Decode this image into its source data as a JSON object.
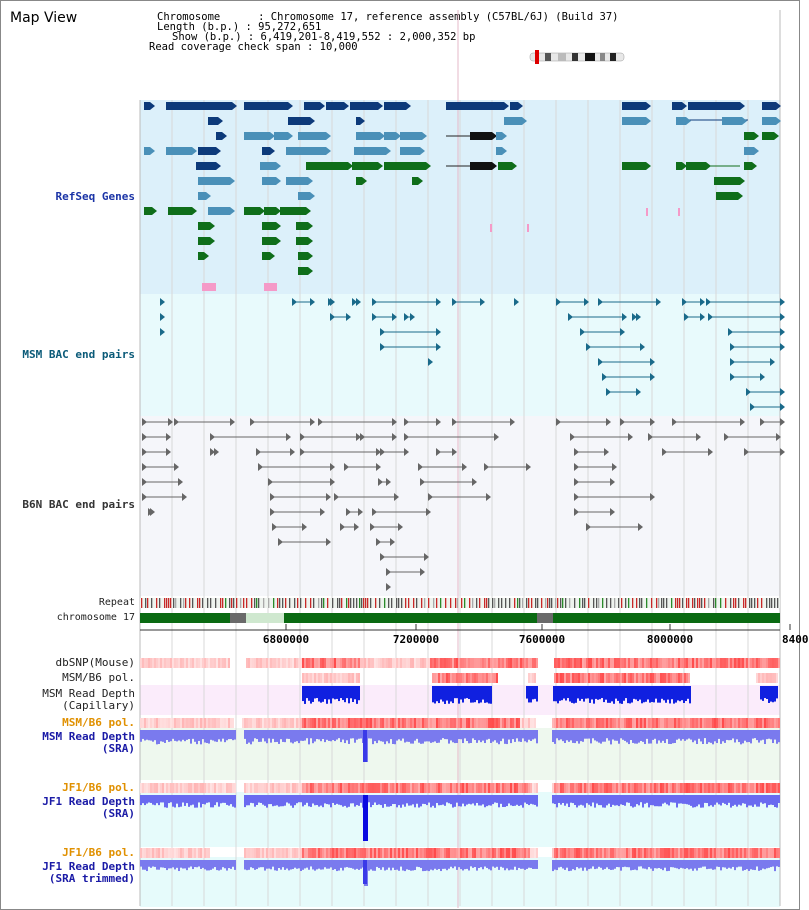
{
  "title": "Map View",
  "info": {
    "chromosome": "Chromosome      : Chromosome 17, reference assembly (C57BL/6J) (Build 37)",
    "length": "Length (b.p.) : 95,272,651",
    "show": "Show (b.p.) : 6,419,201-8,419,552 : 2,000,352 bp",
    "coverage": "Read coverage check span : 10,000"
  },
  "tracks": {
    "refseq": "RefSeq Genes",
    "msm_bac": "MSM BAC end pairs",
    "b6n_bac": "B6N BAC end pairs",
    "repeat": "Repeat",
    "chrom": "chromosome 17",
    "dbsnp": "dbSNP(Mouse)",
    "msm_b6_pol_1": "MSM/B6 pol.",
    "msm_depth_cap": "MSM Read Depth\n(Capillary)",
    "msm_b6_pol_2": "MSM/B6 pol.",
    "msm_depth_sra": "MSM Read Depth\n(SRA)",
    "jf1_b6_pol_1": "JF1/B6 pol.",
    "jf1_depth_sra": "JF1 Read Depth\n(SRA)",
    "jf1_b6_pol_2": "JF1/B6 pol.",
    "jf1_depth_trim": "JF1 Read Depth\n(SRA trimmed)"
  },
  "axis": {
    "ticks": [
      "6800000",
      "7200000",
      "7600000",
      "8000000",
      "8400"
    ]
  },
  "colors": {
    "refseq_bg": "#dcf0fa",
    "msm_bac_bg": "#e8fafc",
    "b6n_bg": "#f5f6fa",
    "navy_gene": "#0d3a7a",
    "mid_gene": "#4a90b8",
    "green_gene": "#0f6e1a",
    "chrom_green": "#0a6a12"
  }
}
